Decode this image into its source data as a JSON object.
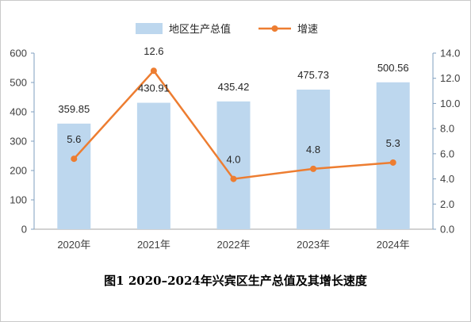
{
  "chart_data": {
    "type": "bar+line",
    "title": "图1  2020–2024年兴宾区生产总值及其增长速度",
    "categories": [
      "2020年",
      "2021年",
      "2022年",
      "2023年",
      "2024年"
    ],
    "y_left": {
      "min": 0,
      "max": 600,
      "ticks": [
        "0",
        "100",
        "200",
        "300",
        "400",
        "500",
        "600"
      ]
    },
    "y_right": {
      "min": 0,
      "max": 14,
      "ticks": [
        "0.0",
        "2.0",
        "4.0",
        "6.0",
        "8.0",
        "10.0",
        "12.0",
        "14.0"
      ]
    },
    "series": [
      {
        "name": "地区生产总值",
        "kind": "bar",
        "axis": "left",
        "color": "#bdd7ee",
        "values": [
          359.85,
          430.91,
          435.42,
          475.73,
          500.56
        ],
        "labels": [
          "359.85",
          "430.91",
          "435.42",
          "475.73",
          "500.56"
        ]
      },
      {
        "name": "增速",
        "kind": "line",
        "axis": "right",
        "color": "#ed7d31",
        "values": [
          5.6,
          12.6,
          4.0,
          4.8,
          5.3
        ],
        "labels": [
          "5.6",
          "12.6",
          "4.0",
          "4.8",
          "5.3"
        ]
      }
    ],
    "legend_position": "top-center",
    "grid": false
  }
}
